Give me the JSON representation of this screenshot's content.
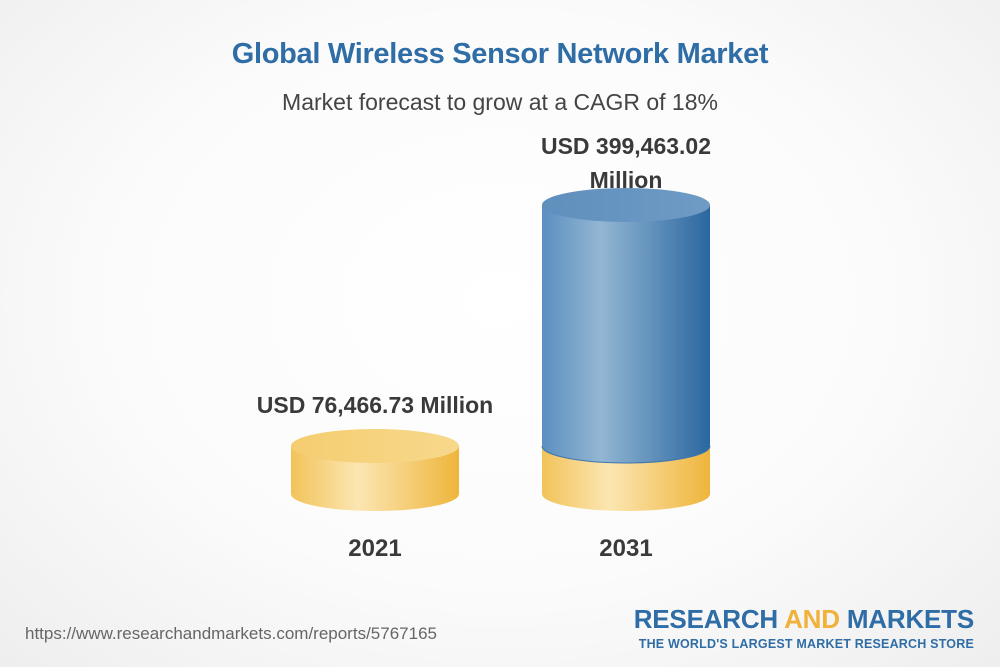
{
  "chart_data": {
    "type": "bar",
    "title": "Global Wireless Sensor Network Market",
    "subtitle": "Market forecast to grow at a CAGR of 18%",
    "categories": [
      "2021",
      "2031"
    ],
    "values": [
      76466.73,
      399463.02
    ],
    "unit": "USD Million",
    "data_labels": [
      "USD 76,466.73 Million",
      "USD 399,463.02 Million"
    ],
    "xlabel": "",
    "ylabel": "",
    "colors": {
      "base": "#f2c35a",
      "growth": "#2f6da6"
    }
  },
  "footer": {
    "url": "https://www.researchandmarkets.com/reports/5767165",
    "brand_part1": "RESEARCH ",
    "brand_part2": "AND",
    "brand_part3": " MARKETS",
    "tagline": "THE WORLD'S LARGEST MARKET RESEARCH STORE"
  }
}
